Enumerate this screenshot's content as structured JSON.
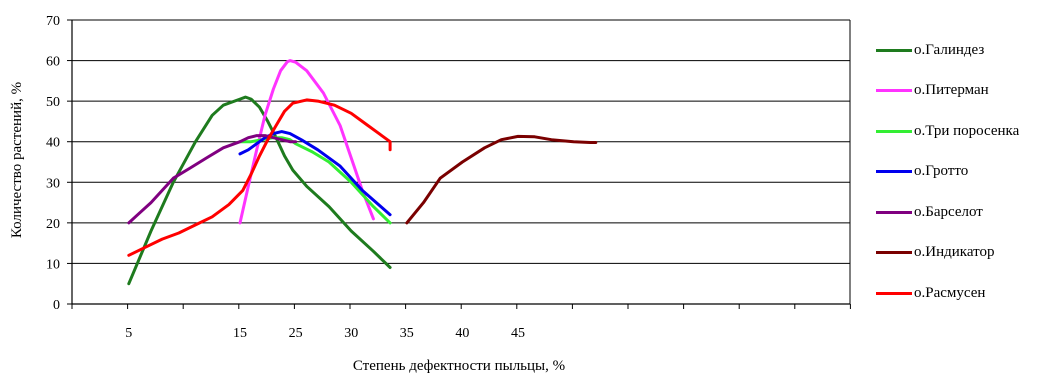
{
  "chart_data": {
    "type": "line",
    "title": "",
    "xlabel": "Степень дефектности пыльцы, %",
    "ylabel": "Количество растений, %",
    "xticks": [
      5,
      15,
      25,
      30,
      35,
      40,
      45
    ],
    "xtick_labels": [
      "5",
      "15",
      "25",
      "30",
      "35",
      "40",
      "45"
    ],
    "yticks": [
      0,
      10,
      20,
      30,
      40,
      50,
      60,
      70
    ],
    "yrange": [
      0,
      70
    ],
    "grid": "horizontal",
    "legend_position": "right",
    "series": [
      {
        "name": "о.Галиндез",
        "color": "#1e7b1e",
        "points": [
          [
            5,
            5
          ],
          [
            7,
            18
          ],
          [
            9,
            30
          ],
          [
            11,
            40
          ],
          [
            12.5,
            46.5
          ],
          [
            13.5,
            49
          ],
          [
            15,
            50.5
          ],
          [
            16,
            51
          ],
          [
            17,
            50.5
          ],
          [
            18.5,
            48.5
          ],
          [
            20,
            45
          ],
          [
            21.5,
            41
          ],
          [
            23,
            36.5
          ],
          [
            24.5,
            33
          ],
          [
            26,
            29
          ],
          [
            28,
            24
          ],
          [
            30,
            18
          ],
          [
            32,
            13
          ],
          [
            33.5,
            9
          ]
        ]
      },
      {
        "name": "о.Питерман",
        "color": "#ff33ff",
        "points": [
          [
            15,
            20
          ],
          [
            16.5,
            29
          ],
          [
            18,
            38
          ],
          [
            19.5,
            46.5
          ],
          [
            21,
            53
          ],
          [
            22.3,
            57.5
          ],
          [
            23.5,
            59.7
          ],
          [
            24,
            60
          ],
          [
            25,
            59.6
          ],
          [
            26,
            57.5
          ],
          [
            27.5,
            52
          ],
          [
            29,
            44
          ],
          [
            30,
            36
          ],
          [
            31,
            28
          ],
          [
            32,
            21
          ]
        ]
      },
      {
        "name": "о.Три поросенка",
        "color": "#33ee33",
        "points": [
          [
            15,
            40
          ],
          [
            17,
            40
          ],
          [
            19,
            40.5
          ],
          [
            21,
            41
          ],
          [
            22.5,
            41
          ],
          [
            24,
            40.5
          ],
          [
            25,
            39.5
          ],
          [
            26.5,
            37.5
          ],
          [
            28,
            35
          ],
          [
            30,
            30
          ],
          [
            32,
            24
          ],
          [
            33.5,
            20
          ]
        ]
      },
      {
        "name": "о.Гротто",
        "color": "#0000ee",
        "points": [
          [
            15,
            37
          ],
          [
            16.5,
            38
          ],
          [
            18,
            39.5
          ],
          [
            19.5,
            41
          ],
          [
            21,
            42
          ],
          [
            22.5,
            42.5
          ],
          [
            24,
            42
          ],
          [
            25.5,
            40.5
          ],
          [
            27,
            38
          ],
          [
            29,
            34
          ],
          [
            31,
            28
          ],
          [
            33.5,
            22
          ]
        ]
      },
      {
        "name": "о.Барселот",
        "color": "#800080",
        "points": [
          [
            5,
            20
          ],
          [
            6,
            22.5
          ],
          [
            7,
            25
          ],
          [
            8,
            28
          ],
          [
            9,
            31
          ],
          [
            10.5,
            33.5
          ],
          [
            12,
            36
          ],
          [
            13.5,
            38.5
          ],
          [
            15,
            40
          ],
          [
            16.5,
            41
          ],
          [
            18,
            41.5
          ],
          [
            19.5,
            41.5
          ],
          [
            21,
            41
          ],
          [
            22.5,
            40.5
          ],
          [
            24,
            40
          ],
          [
            25,
            40
          ]
        ]
      },
      {
        "name": "о.Индикатор",
        "color": "#7a0000",
        "points": [
          [
            35,
            20
          ],
          [
            36.5,
            25
          ],
          [
            38,
            31
          ],
          [
            40,
            35
          ],
          [
            42,
            38.5
          ],
          [
            43.5,
            40.5
          ],
          [
            45,
            41.3
          ],
          [
            46.5,
            41.2
          ],
          [
            48,
            40.5
          ],
          [
            50,
            40
          ],
          [
            51.5,
            39.8
          ],
          [
            52,
            39.8
          ]
        ]
      },
      {
        "name": "о.Расмусен",
        "color": "#ff0000",
        "points": [
          [
            5,
            12
          ],
          [
            6.5,
            14
          ],
          [
            8,
            16
          ],
          [
            9.5,
            17.5
          ],
          [
            11,
            19.5
          ],
          [
            12.5,
            21.5
          ],
          [
            14,
            24.5
          ],
          [
            15.5,
            28
          ],
          [
            17,
            32
          ],
          [
            18.5,
            36.5
          ],
          [
            20,
            40.5
          ],
          [
            21.5,
            44
          ],
          [
            23,
            47.5
          ],
          [
            24.5,
            49.5
          ],
          [
            26,
            50.3
          ],
          [
            27,
            50
          ],
          [
            28.5,
            49
          ],
          [
            30,
            47
          ],
          [
            31.5,
            44
          ],
          [
            32.5,
            42
          ],
          [
            33.5,
            40
          ],
          [
            33.5,
            38
          ]
        ]
      }
    ]
  }
}
